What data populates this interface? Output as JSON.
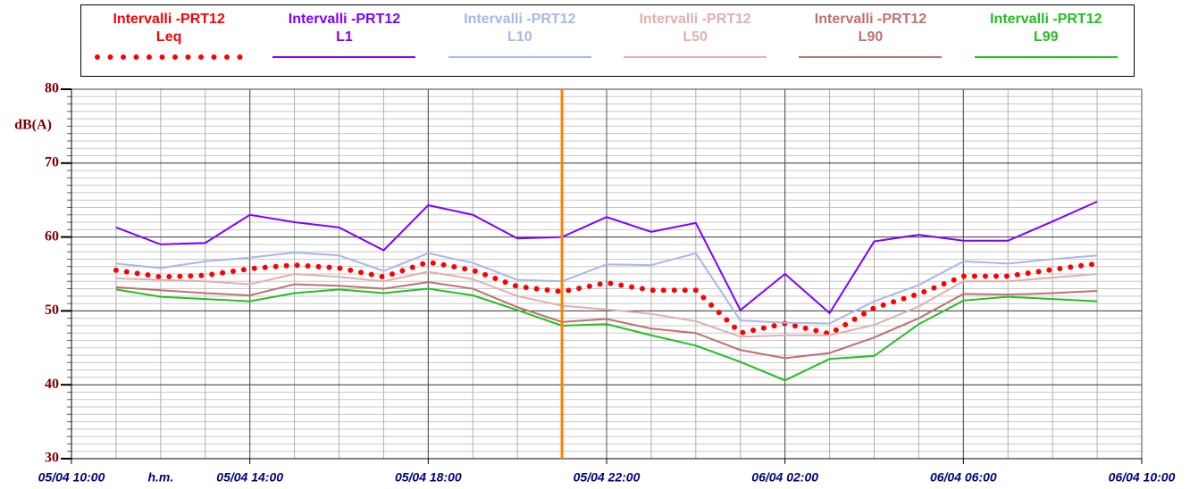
{
  "chart_data": {
    "type": "line",
    "ylabel": "dB(A)",
    "xlabel": "h.m.",
    "x": [
      1,
      2,
      3,
      4,
      5,
      6,
      7,
      8,
      9,
      10,
      11,
      12,
      13,
      14,
      15,
      16,
      17,
      18,
      19,
      20,
      21,
      22,
      23
    ],
    "xlim": [
      0,
      24
    ],
    "xticks": [
      {
        "value": 0,
        "label": "05/04 10:00"
      },
      {
        "value": 4,
        "label": "05/04 14:00"
      },
      {
        "value": 8,
        "label": "05/04 18:00"
      },
      {
        "value": 12,
        "label": "05/04 22:00"
      },
      {
        "value": 16,
        "label": "06/04 02:00"
      },
      {
        "value": 20,
        "label": "06/04 06:00"
      },
      {
        "value": 24,
        "label": "06/04 10:00"
      }
    ],
    "x_minor_step": 1,
    "ylim": [
      30,
      80
    ],
    "yticks": [
      30,
      40,
      50,
      60,
      70,
      80
    ],
    "y_minor_step": 1,
    "grid": true,
    "marker_x": 11,
    "marker_color": "#ff8000",
    "series": [
      {
        "name": "Intervalli -PRT12\nLeq",
        "color": "#ff0000",
        "style": "dotted",
        "values": [
          55.5,
          54.6,
          54.8,
          55.7,
          56.2,
          55.8,
          54.6,
          56.6,
          55.5,
          53.3,
          52.6,
          53.8,
          52.8,
          52.8,
          47.0,
          48.3,
          46.9,
          50.4,
          52.3,
          54.7,
          54.7,
          55.6,
          56.4
        ]
      },
      {
        "name": "Intervalli -PRT12\nL1",
        "color": "#8000ff",
        "style": "solid",
        "values": [
          61.3,
          59.0,
          59.2,
          63.0,
          62.0,
          61.3,
          58.2,
          64.3,
          63.0,
          59.8,
          60.0,
          62.7,
          60.7,
          61.9,
          50.1,
          55.0,
          49.7,
          59.4,
          60.3,
          59.5,
          59.5,
          62.1,
          64.8
        ]
      },
      {
        "name": "Intervalli -PRT12\nL10",
        "color": "#a8b8e8",
        "style": "solid",
        "values": [
          56.4,
          55.8,
          56.7,
          57.2,
          57.9,
          57.5,
          55.4,
          57.8,
          56.5,
          54.2,
          54.0,
          56.3,
          56.2,
          57.8,
          48.7,
          48.4,
          48.3,
          51.3,
          53.5,
          56.7,
          56.4,
          57.0,
          57.5
        ]
      },
      {
        "name": "Intervalli -PRT12\nL50",
        "color": "#e0b0b0",
        "style": "solid",
        "values": [
          54.4,
          54.2,
          54.0,
          53.6,
          55.0,
          54.6,
          54.0,
          55.3,
          54.3,
          52.0,
          50.7,
          50.2,
          49.6,
          48.6,
          46.5,
          46.7,
          46.7,
          48.1,
          50.6,
          54.0,
          54.0,
          54.5,
          55.0
        ]
      },
      {
        "name": "Intervalli -PRT12\nL90",
        "color": "#c07070",
        "style": "solid",
        "values": [
          53.2,
          52.8,
          52.4,
          52.1,
          53.6,
          53.4,
          53.0,
          53.9,
          53.0,
          50.5,
          48.5,
          48.9,
          47.6,
          47.0,
          44.7,
          43.6,
          44.3,
          46.4,
          49.0,
          52.3,
          52.2,
          52.4,
          52.7
        ]
      },
      {
        "name": "Intervalli -PRT12\nL99",
        "color": "#20c020",
        "style": "solid",
        "values": [
          52.9,
          51.9,
          51.6,
          51.3,
          52.4,
          52.9,
          52.4,
          53.0,
          52.1,
          50.1,
          48.0,
          48.2,
          46.7,
          45.3,
          43.1,
          40.6,
          43.5,
          43.9,
          48.2,
          51.4,
          51.9,
          51.6,
          51.3
        ]
      }
    ]
  }
}
